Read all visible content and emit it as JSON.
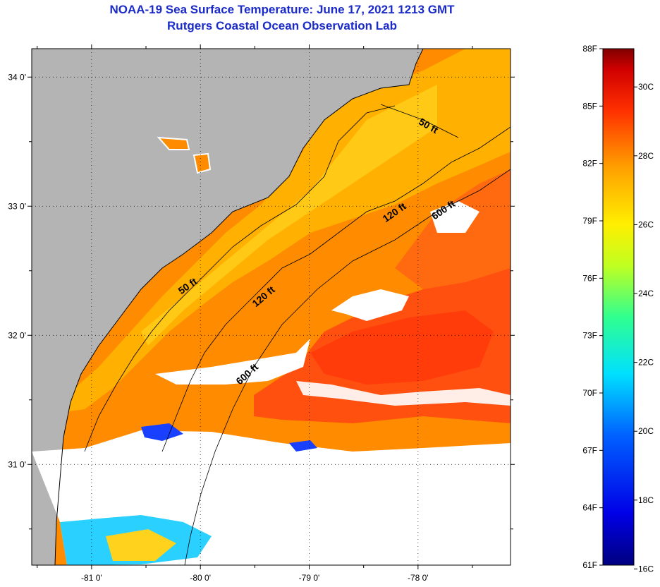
{
  "title": {
    "line1": "NOAA-19 Sea Surface Temperature:  June 17, 2021 1213 GMT",
    "line2": "Rutgers Coastal Ocean Observation Lab"
  },
  "map": {
    "lon_range": [
      -81.55,
      -77.15
    ],
    "lat_range": [
      30.22,
      34.22
    ],
    "lat_ticks": [
      {
        "value": 34,
        "label": "34 0'"
      },
      {
        "value": 33,
        "label": "33 0'"
      },
      {
        "value": 32,
        "label": "32 0'"
      },
      {
        "value": 31,
        "label": "31 0'"
      }
    ],
    "lon_ticks": [
      {
        "value": -81,
        "label": "-81 0'"
      },
      {
        "value": -80,
        "label": "-80 0'"
      },
      {
        "value": -79,
        "label": "-79 0'"
      },
      {
        "value": -78,
        "label": "-78 0'"
      }
    ],
    "contour_labels": [
      {
        "text": "50 ft",
        "lon": -77.92,
        "lat": 33.6
      },
      {
        "text": "50 ft",
        "lon": -80.1,
        "lat": 32.36
      },
      {
        "text": "120 ft",
        "lon": -78.2,
        "lat": 32.93
      },
      {
        "text": "120 ft",
        "lon": -79.4,
        "lat": 32.28
      },
      {
        "text": "600 ft",
        "lon": -77.75,
        "lat": 32.95
      },
      {
        "text": "600 ft",
        "lon": -79.55,
        "lat": 31.68
      }
    ],
    "colors": {
      "land": "#b4b4b4",
      "cloud": "#ffffff",
      "warm_orange": "#ff8c00",
      "hot_red": "#ff4a0a",
      "yellow": "#ffcc1a"
    }
  },
  "colorbar": {
    "f_labels": [
      "88F",
      "85F",
      "82F",
      "79F",
      "76F",
      "73F",
      "70F",
      "67F",
      "64F",
      "61F"
    ],
    "c_labels": [
      "30C",
      "28C",
      "26C",
      "24C",
      "22C",
      "20C",
      "18C",
      "16C"
    ],
    "c_values": [
      30,
      28,
      26,
      24,
      22,
      20,
      18,
      16
    ],
    "range_f": [
      61,
      88
    ]
  }
}
